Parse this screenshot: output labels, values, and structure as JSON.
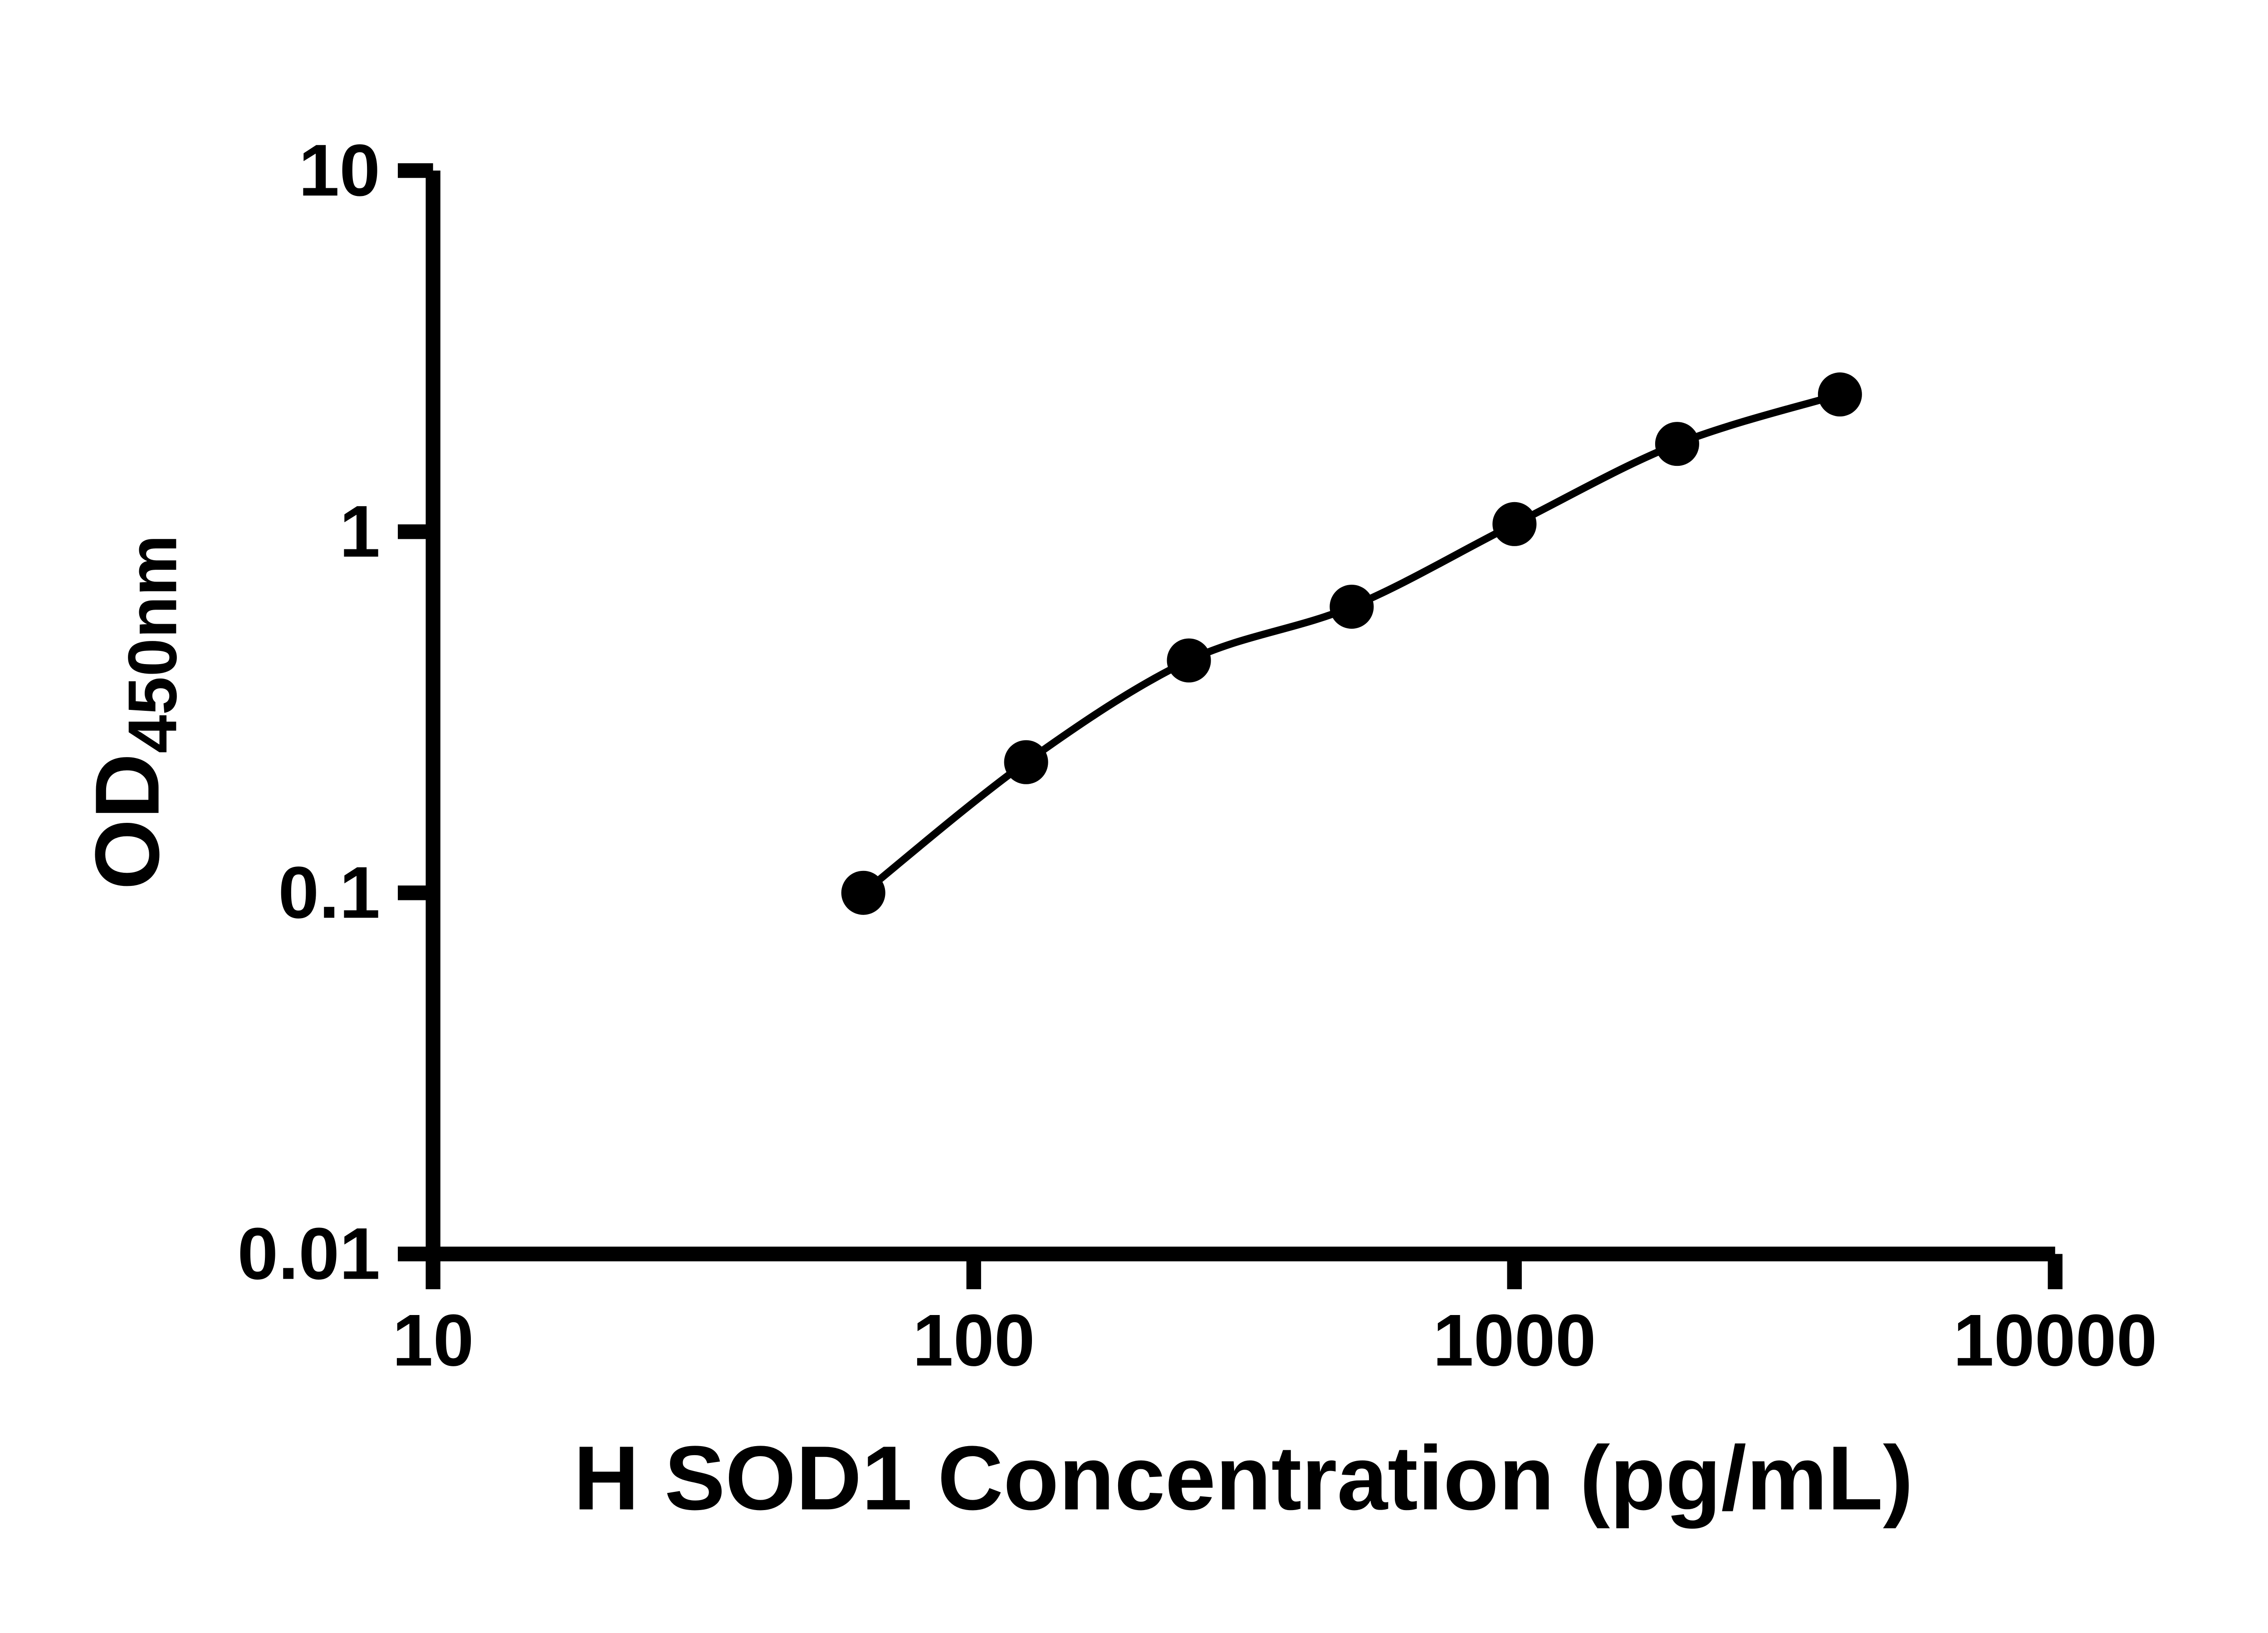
{
  "colors": {
    "axis": "#000000",
    "marker": "#000000",
    "line": "#000000",
    "background": "#ffffff",
    "text": "#000000"
  },
  "chart_data": {
    "type": "scatter",
    "title": "",
    "xlabel": "H SOD1 Concentration (pg/mL)",
    "ylabel": "OD",
    "ylabel_subscript": "450nm",
    "x_scale": "log10",
    "y_scale": "log10",
    "xlim": [
      10,
      10000
    ],
    "ylim": [
      0.01,
      10
    ],
    "x_ticks": [
      10,
      100,
      1000,
      10000
    ],
    "x_tick_labels": [
      "10",
      "100",
      "1000",
      "10000"
    ],
    "y_ticks": [
      0.01,
      0.1,
      1,
      10
    ],
    "y_tick_labels": [
      "0.01",
      "0.1",
      "1",
      "10"
    ],
    "grid": false,
    "legend": "none",
    "series": [
      {
        "marker": "circle",
        "marker_color": "#000000",
        "line_color": "#000000",
        "x": [
          62.5,
          125,
          250,
          500,
          1000,
          2000,
          4000
        ],
        "y": [
          0.1,
          0.23,
          0.44,
          0.62,
          1.05,
          1.75,
          2.4
        ]
      }
    ]
  }
}
